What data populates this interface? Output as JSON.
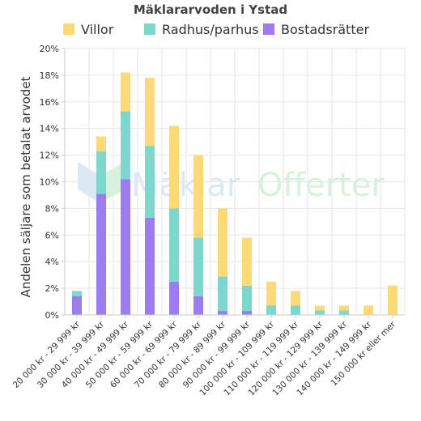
{
  "chart_data": {
    "type": "bar",
    "stacked": true,
    "title": "Mäklararvoden i Ystad",
    "ylabel": "Andelen säljare som betalat arvodet",
    "xlabel": "",
    "ylim": [
      0,
      20
    ],
    "yticks": [
      0,
      2,
      4,
      6,
      8,
      10,
      12,
      14,
      16,
      18,
      20
    ],
    "ytick_suffix": "%",
    "grid": true,
    "legend_position": "top",
    "watermark": {
      "part1": "Mäklar",
      "part2": "Offerter",
      "color1": "#dbe9f3",
      "color2": "#d6f1dd"
    },
    "categories": [
      "20 000 kr - 29 999 kr",
      "30 000 kr - 39 999 kr",
      "40 000 kr - 49 999 kr",
      "50 000 kr - 59 999 kr",
      "60 000 kr - 69 999 kr",
      "70 000 kr - 79 999 kr",
      "80 000 kr - 89 999 kr",
      "90 000 kr - 99 999 kr",
      "100 000 kr - 109 999 kr",
      "110 000 kr - 119 999 kr",
      "120 000 kr - 129 999 kr",
      "130 000 kr - 139 999 kr",
      "140 000 kr - 149 999 kr",
      "150 000 kr eller mer"
    ],
    "series": [
      {
        "name": "Bostadsrätter",
        "color": "#9b7df0",
        "values": [
          1.4,
          9.1,
          10.2,
          7.3,
          2.5,
          1.4,
          0.3,
          0.3,
          0,
          0,
          0,
          0,
          0,
          0
        ]
      },
      {
        "name": "Radhus/parhus",
        "color": "#7ed7cc",
        "values": [
          0.4,
          3.2,
          5.1,
          5.4,
          5.5,
          4.4,
          2.6,
          1.9,
          0.7,
          0.7,
          0.35,
          0.35,
          0,
          0
        ]
      },
      {
        "name": "Villor",
        "color": "#fed978",
        "values": [
          0,
          1.1,
          2.9,
          5.1,
          6.2,
          6.2,
          5.1,
          3.6,
          1.8,
          1.1,
          0.35,
          0.35,
          0.7,
          2.2
        ]
      }
    ],
    "legend_order": [
      "Villor",
      "Radhus/parhus",
      "Bostadsrätter"
    ]
  }
}
